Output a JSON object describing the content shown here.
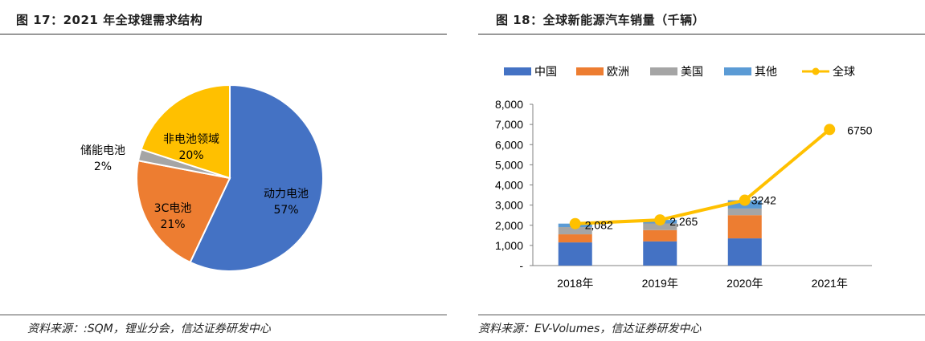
{
  "left": {
    "title": "图 17：2021 年全球锂需求结构",
    "source": "资料来源：:SQM，锂业分会，信达证券研发中心"
  },
  "right": {
    "title": "图 18：全球新能源汽车销量（千辆）",
    "source": "资料来源：EV-Volumes，信达证券研发中心"
  },
  "chart_data": [
    {
      "type": "pie",
      "title": "2021 年全球锂需求结构",
      "slices": [
        {
          "name": "动力电池",
          "label": "57%",
          "value": 57,
          "color": "#4472C4"
        },
        {
          "name": "3C电池",
          "label": "21%",
          "value": 21,
          "color": "#ED7D31"
        },
        {
          "name": "储能电池",
          "label": "2%",
          "value": 2,
          "color": "#A5A5A5"
        },
        {
          "name": "非电池领域",
          "label": "20%",
          "value": 20,
          "color": "#FFC000"
        }
      ]
    },
    {
      "type": "bar",
      "stacked": true,
      "title": "全球新能源汽车销量（千辆）",
      "categories": [
        "2018年",
        "2019年",
        "2020年",
        "2021年"
      ],
      "ylim": [
        0,
        8000
      ],
      "yticks": [
        "-",
        "1,000",
        "2,000",
        "3,000",
        "4,000",
        "5,000",
        "6,000",
        "7,000",
        "8,000"
      ],
      "legend_position": "top",
      "series": [
        {
          "name": "中国",
          "type": "bar",
          "color": "#4472C4",
          "values": [
            1150,
            1200,
            1350,
            null
          ]
        },
        {
          "name": "欧洲",
          "type": "bar",
          "color": "#ED7D31",
          "values": [
            400,
            560,
            1150,
            null
          ]
        },
        {
          "name": "美国",
          "type": "bar",
          "color": "#A5A5A5",
          "values": [
            360,
            330,
            330,
            null
          ]
        },
        {
          "name": "其他",
          "type": "bar",
          "color": "#5B9BD5",
          "values": [
            172,
            175,
            412,
            null
          ]
        },
        {
          "name": "全球",
          "type": "line",
          "color": "#FFC000",
          "values": [
            2082,
            2265,
            3242,
            6750
          ],
          "labels": [
            "2,082",
            "2,265",
            "3242",
            "6750"
          ]
        }
      ]
    }
  ]
}
